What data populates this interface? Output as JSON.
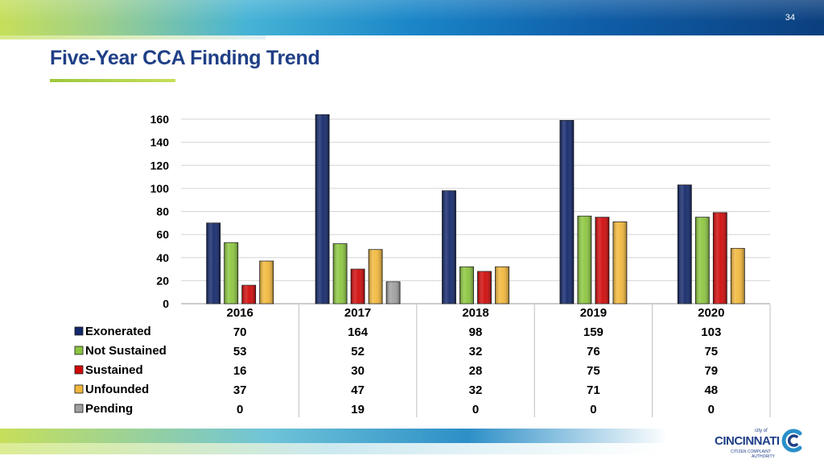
{
  "slide_number": "34",
  "title": "Five-Year CCA Finding Trend",
  "logo": {
    "small": "city of",
    "main": "CINCINNATI",
    "sub1": "CITIZEN COMPLAINT",
    "sub2": "AUTHORITY"
  },
  "chart_data": {
    "type": "bar",
    "categories": [
      "2016",
      "2017",
      "2018",
      "2019",
      "2020"
    ],
    "series": [
      {
        "name": "Exonerated",
        "values": [
          70,
          164,
          98,
          159,
          103
        ],
        "color": "#13286b"
      },
      {
        "name": "Not Sustained",
        "values": [
          53,
          52,
          32,
          76,
          75
        ],
        "color": "#8cc63f"
      },
      {
        "name": "Sustained",
        "values": [
          16,
          30,
          28,
          75,
          79
        ],
        "color": "#d10a0a"
      },
      {
        "name": "Unfounded",
        "values": [
          37,
          47,
          32,
          71,
          48
        ],
        "color": "#f2b83c"
      },
      {
        "name": "Pending",
        "values": [
          0,
          19,
          0,
          0,
          0
        ],
        "color": "#a0a0a0"
      }
    ],
    "yticks": [
      0,
      20,
      40,
      60,
      80,
      100,
      120,
      140,
      160
    ],
    "ylim": [
      0,
      160
    ],
    "grid": true,
    "legend": "data table below chart"
  }
}
